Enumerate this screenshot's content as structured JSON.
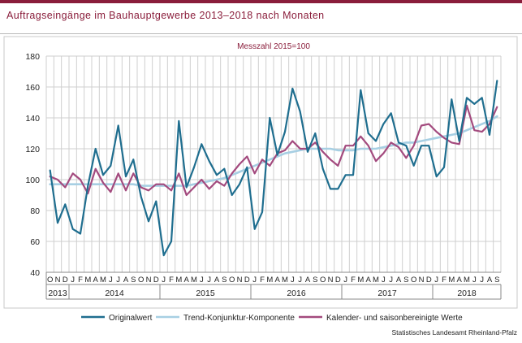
{
  "header": {
    "title": "Auftragseingänge im Bauhauptgewerbe 2013–2018 nach Monaten"
  },
  "footer": {
    "source": "Statistisches Landesamt Rheinland-Pfalz"
  },
  "colors": {
    "brand": "#8a1d3b",
    "original": "#1f6e8f",
    "trend": "#a7cfe3",
    "adjusted": "#a34a7e",
    "grid": "#cfcfcf"
  },
  "chart_data": {
    "type": "line",
    "subtitle": "Messzahl 2015=100",
    "ylim": [
      40,
      180
    ],
    "yticks": [
      40,
      60,
      80,
      100,
      120,
      140,
      160,
      180
    ],
    "grid": true,
    "legend_position": "bottom",
    "month_labels": [
      "O",
      "N",
      "D",
      "J",
      "F",
      "M",
      "A",
      "M",
      "J",
      "J",
      "A",
      "S",
      "O",
      "N",
      "D",
      "J",
      "F",
      "M",
      "A",
      "M",
      "J",
      "J",
      "A",
      "S",
      "O",
      "N",
      "D",
      "J",
      "F",
      "M",
      "A",
      "M",
      "J",
      "J",
      "A",
      "S",
      "O",
      "N",
      "D",
      "J",
      "F",
      "M",
      "A",
      "M",
      "J",
      "J",
      "A",
      "S",
      "O",
      "N",
      "D",
      "J",
      "F",
      "M",
      "A",
      "M",
      "J",
      "J",
      "A",
      "S"
    ],
    "year_labels": [
      {
        "label": "2013",
        "start": 0,
        "end": 2
      },
      {
        "label": "2014",
        "start": 3,
        "end": 14
      },
      {
        "label": "2015",
        "start": 15,
        "end": 26
      },
      {
        "label": "2016",
        "start": 27,
        "end": 38
      },
      {
        "label": "2017",
        "start": 39,
        "end": 50
      },
      {
        "label": "2018",
        "start": 51,
        "end": 59
      }
    ],
    "series": [
      {
        "name": "Originalwert",
        "color": "#1f6e8f",
        "values": [
          106,
          72,
          84,
          68,
          65,
          96,
          120,
          103,
          109,
          135,
          102,
          113,
          89,
          73,
          86,
          51,
          60,
          138,
          95,
          108,
          123,
          112,
          103,
          107,
          90,
          97,
          108,
          68,
          79,
          140,
          116,
          131,
          159,
          144,
          118,
          130,
          107,
          94,
          94,
          103,
          103,
          158,
          130,
          125,
          136,
          143,
          124,
          122,
          109,
          122,
          122,
          102,
          108,
          152,
          125,
          153,
          149,
          153,
          129,
          164
        ]
      },
      {
        "name": "Trend-Konjunktur-Komponente",
        "color": "#a7cfe3",
        "values": [
          97,
          97,
          97,
          97,
          97,
          97,
          97,
          97,
          97,
          97,
          97,
          97,
          96,
          96,
          96,
          96,
          96,
          96,
          96,
          97,
          98,
          99,
          100,
          101,
          103,
          105,
          107,
          109,
          111,
          113,
          115,
          117,
          118,
          119,
          120,
          120,
          120,
          120,
          119,
          119,
          119,
          120,
          120,
          120,
          121,
          122,
          123,
          124,
          124,
          125,
          126,
          127,
          128,
          129,
          130,
          132,
          134,
          136,
          138,
          141
        ]
      },
      {
        "name": "Kalender- und saisonbereinigte Werte",
        "color": "#a34a7e",
        "values": [
          102,
          100,
          95,
          104,
          100,
          91,
          107,
          98,
          92,
          104,
          93,
          104,
          95,
          93,
          97,
          97,
          93,
          104,
          90,
          95,
          100,
          94,
          99,
          96,
          104,
          110,
          115,
          104,
          113,
          109,
          117,
          119,
          125,
          120,
          120,
          124,
          118,
          113,
          109,
          122,
          122,
          128,
          122,
          112,
          117,
          124,
          121,
          114,
          122,
          135,
          136,
          131,
          127,
          124,
          123,
          148,
          132,
          131,
          136,
          147
        ]
      }
    ]
  }
}
